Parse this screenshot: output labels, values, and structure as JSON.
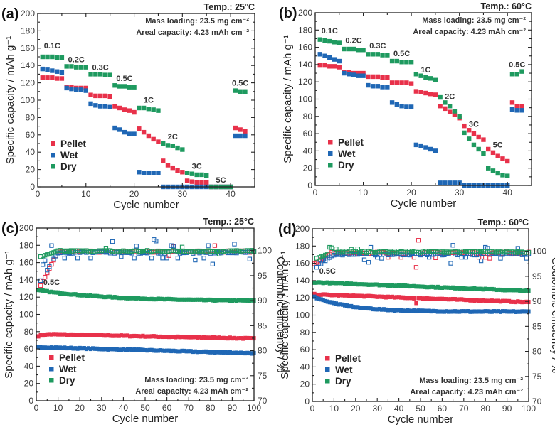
{
  "figure": {
    "colors": {
      "Pellet": "#e8314a",
      "Wet": "#1f67b5",
      "Dry": "#1e9a5f"
    }
  },
  "chart_data": [
    {
      "id": "a",
      "panel_label": "(a)",
      "type": "scatter",
      "title": "Temp.: 25°C",
      "annotations": [
        "Mass loading: 23.5 mg cm⁻²",
        "Areal capacity: 4.23 mAh cm⁻²"
      ],
      "xlabel": "Cycle number",
      "ylabel": "Specific capacity / mAh g⁻¹",
      "xlim": [
        0,
        45
      ],
      "ylim": [
        0,
        200
      ],
      "xticks": [
        0,
        10,
        20,
        30,
        40
      ],
      "yticks": [
        0,
        20,
        40,
        60,
        80,
        100,
        120,
        140,
        160,
        180,
        200
      ],
      "legend": [
        "Pellet",
        "Wet",
        "Dry"
      ],
      "legend_position": "bottom-left",
      "rate_labels": [
        {
          "text": "0.1C",
          "x": 3,
          "y": 160
        },
        {
          "text": "0.2C",
          "x": 8,
          "y": 144
        },
        {
          "text": "0.3C",
          "x": 13,
          "y": 135
        },
        {
          "text": "0.5C",
          "x": 18,
          "y": 122
        },
        {
          "text": "1C",
          "x": 23,
          "y": 97
        },
        {
          "text": "2C",
          "x": 28,
          "y": 55
        },
        {
          "text": "3C",
          "x": 33,
          "y": 21
        },
        {
          "text": "5C",
          "x": 38,
          "y": 5
        },
        {
          "text": "0.5C",
          "x": 42,
          "y": 117
        }
      ],
      "x": [
        1,
        2,
        3,
        4,
        5,
        6,
        7,
        8,
        9,
        10,
        11,
        12,
        13,
        14,
        15,
        16,
        17,
        18,
        19,
        20,
        21,
        22,
        23,
        24,
        25,
        26,
        27,
        28,
        29,
        30,
        31,
        32,
        33,
        34,
        35,
        36,
        37,
        38,
        39,
        40,
        41,
        42,
        43
      ],
      "series": [
        {
          "name": "Pellet",
          "values": [
            126,
            126,
            126,
            125,
            125,
            115,
            115,
            114,
            114,
            114,
            106,
            105,
            105,
            105,
            104,
            93,
            91,
            89,
            88,
            86,
            67,
            63,
            59,
            55,
            52,
            30,
            25,
            22,
            19,
            17,
            7,
            6,
            5,
            5,
            5,
            0,
            0,
            0,
            0,
            0,
            68,
            66,
            64
          ]
        },
        {
          "name": "Wet",
          "values": [
            136,
            135,
            134,
            133,
            132,
            114,
            113,
            112,
            112,
            111,
            96,
            94,
            93,
            93,
            92,
            68,
            66,
            63,
            61,
            61,
            17,
            16,
            16,
            16,
            16,
            0,
            0,
            0,
            0,
            0,
            0,
            0,
            0,
            0,
            0,
            0,
            0,
            0,
            0,
            0,
            59,
            59,
            59
          ]
        },
        {
          "name": "Dry",
          "values": [
            150,
            150,
            150,
            149,
            149,
            139,
            139,
            138,
            138,
            138,
            130,
            130,
            130,
            129,
            129,
            117,
            116,
            116,
            115,
            115,
            91,
            91,
            90,
            89,
            88,
            50,
            48,
            47,
            45,
            43,
            16,
            15,
            14,
            14,
            13,
            0,
            0,
            0,
            0,
            0,
            111,
            110,
            110
          ]
        }
      ]
    },
    {
      "id": "b",
      "panel_label": "(b)",
      "type": "scatter",
      "title": "Temp.: 60°C",
      "annotations": [
        "Mass loading: 23.5 mg cm⁻²",
        "Areal capacity: 4.23 mAh cm⁻²"
      ],
      "xlabel": "Cycle number",
      "ylabel": "Specific capacity / mAh g⁻¹",
      "xlim": [
        0,
        45
      ],
      "ylim": [
        0,
        200
      ],
      "xticks": [
        0,
        10,
        20,
        30,
        40
      ],
      "yticks": [
        0,
        20,
        40,
        60,
        80,
        100,
        120,
        140,
        160,
        180,
        200
      ],
      "legend": [
        "Pellet",
        "Wet",
        "Dry"
      ],
      "legend_position": "bottom-left",
      "rate_labels": [
        {
          "text": "0.1C",
          "x": 3,
          "y": 176
        },
        {
          "text": "0.2C",
          "x": 8,
          "y": 165
        },
        {
          "text": "0.3C",
          "x": 13,
          "y": 159
        },
        {
          "text": "0.5C",
          "x": 18,
          "y": 150
        },
        {
          "text": "1C",
          "x": 23,
          "y": 131
        },
        {
          "text": "2C",
          "x": 28,
          "y": 100
        },
        {
          "text": "3C",
          "x": 33,
          "y": 68
        },
        {
          "text": "5C",
          "x": 38,
          "y": 44
        },
        {
          "text": "0.5C",
          "x": 42,
          "y": 137
        }
      ],
      "x": [
        1,
        2,
        3,
        4,
        5,
        6,
        7,
        8,
        9,
        10,
        11,
        12,
        13,
        14,
        15,
        16,
        17,
        18,
        19,
        20,
        21,
        22,
        23,
        24,
        25,
        26,
        27,
        28,
        29,
        30,
        31,
        32,
        33,
        34,
        35,
        36,
        37,
        38,
        39,
        40,
        41,
        42,
        43
      ],
      "series": [
        {
          "name": "Pellet",
          "values": [
            139,
            139,
            138,
            138,
            137,
            131,
            131,
            130,
            130,
            130,
            126,
            126,
            126,
            125,
            125,
            119,
            119,
            119,
            119,
            118,
            109,
            108,
            107,
            106,
            105,
            92,
            89,
            85,
            82,
            78,
            69,
            64,
            60,
            56,
            53,
            42,
            38,
            34,
            31,
            28,
            96,
            92,
            92
          ]
        },
        {
          "name": "Wet",
          "values": [
            152,
            150,
            148,
            146,
            144,
            130,
            129,
            128,
            127,
            127,
            116,
            115,
            115,
            114,
            114,
            96,
            94,
            92,
            91,
            91,
            47,
            46,
            44,
            42,
            40,
            3,
            3,
            3,
            3,
            3,
            0,
            0,
            0,
            0,
            0,
            0,
            0,
            0,
            0,
            0,
            88,
            87,
            87
          ]
        },
        {
          "name": "Dry",
          "values": [
            169,
            168,
            167,
            166,
            165,
            158,
            158,
            158,
            157,
            157,
            152,
            152,
            152,
            151,
            151,
            144,
            144,
            143,
            143,
            143,
            129,
            127,
            125,
            124,
            122,
            102,
            96,
            92,
            86,
            80,
            61,
            54,
            47,
            42,
            37,
            20,
            17,
            14,
            12,
            11,
            129,
            129,
            132
          ]
        }
      ]
    },
    {
      "id": "c",
      "panel_label": "(c)",
      "type": "scatter",
      "title": "Temp.: 25°C",
      "annotations": [
        "Mass loading: 23.5 mg cm⁻²",
        "Areal capacity: 4.23 mAh cm⁻²"
      ],
      "rate_labels": [
        {
          "text": "0.5C",
          "x": 7,
          "y": 134
        }
      ],
      "xlabel": "Cycle number",
      "ylabel": "Specific capacity / mAh g⁻¹",
      "y2label": "Coulombic efficiency / %",
      "xlim": [
        0,
        100
      ],
      "ylim": [
        0,
        200
      ],
      "y2lim": [
        70,
        104.5
      ],
      "xticks": [
        0,
        10,
        20,
        30,
        40,
        50,
        60,
        70,
        80,
        90,
        100
      ],
      "yticks": [
        0,
        20,
        40,
        60,
        80,
        100,
        120,
        140,
        160,
        180,
        200
      ],
      "y2ticks": [
        70,
        75,
        80,
        85,
        90,
        95,
        100
      ],
      "legend": [
        "Pellet",
        "Wet",
        "Dry"
      ],
      "legend_position": "bottom-left",
      "capacity_series": [
        {
          "name": "Pellet",
          "start": 75,
          "peak_cycle": 6,
          "peak": 77,
          "end": 72
        },
        {
          "name": "Wet",
          "start": 62,
          "peak_cycle": 1,
          "peak": 62,
          "end": 55
        },
        {
          "name": "Dry",
          "start": 128,
          "peak_cycle": 1,
          "peak": 128,
          "end": 116
        }
      ],
      "ce_series": [
        {
          "name": "Pellet",
          "baseline": 99.8,
          "first": {
            "x": 2,
            "y": 93
          },
          "outliers": [
            [
              61,
              99.0
            ],
            [
              82,
              101.0
            ],
            [
              63,
              100.8
            ]
          ]
        },
        {
          "name": "Wet",
          "baseline": 99.6,
          "first": {
            "x": 2,
            "y": 94
          },
          "outliers": [
            [
              3,
              97.2
            ],
            [
              4,
              98.0
            ],
            [
              7,
              101.0
            ],
            [
              8,
              98.3
            ],
            [
              13,
              98.5
            ],
            [
              19,
              98.5
            ],
            [
              25,
              98.5
            ],
            [
              35,
              101.8
            ],
            [
              39,
              98.8
            ],
            [
              45,
              98.5
            ],
            [
              46,
              100.9
            ],
            [
              53,
              98.5
            ],
            [
              54,
              102.2
            ],
            [
              55,
              101.9
            ],
            [
              58,
              98.5
            ],
            [
              60,
              98.5
            ],
            [
              62,
              101.0
            ],
            [
              63,
              100.9
            ],
            [
              65,
              98.5
            ],
            [
              73,
              98.1
            ],
            [
              77,
              98.5
            ],
            [
              79,
              101.0
            ],
            [
              81,
              97.3
            ],
            [
              91,
              101.3
            ],
            [
              98,
              98.3
            ]
          ]
        },
        {
          "name": "Dry",
          "baseline": 99.9,
          "first": {
            "x": 2,
            "y": 98.8
          },
          "outliers": [
            [
              32,
              100.5
            ],
            [
              67,
              100.7
            ],
            [
              84,
              99.3
            ]
          ]
        }
      ]
    },
    {
      "id": "d",
      "panel_label": "(d)",
      "type": "scatter",
      "title": "Temp.: 60°C",
      "annotations": [
        "Mass loading: 23.5 mg cm⁻²",
        "Areal capacity: 4.23 mAh cm⁻²"
      ],
      "rate_labels": [
        {
          "text": "0.5C",
          "x": 7,
          "y": 148
        }
      ],
      "xlabel": "Cycle number",
      "ylabel": "Specific capacity / mAh g⁻¹",
      "y2label": "Coulombic efficiency / %",
      "xlim": [
        0,
        100
      ],
      "ylim": [
        0,
        200
      ],
      "y2lim": [
        70,
        104.5
      ],
      "xticks": [
        0,
        10,
        20,
        30,
        40,
        50,
        60,
        70,
        80,
        90,
        100
      ],
      "yticks": [
        0,
        20,
        40,
        60,
        80,
        100,
        120,
        140,
        160,
        180,
        200
      ],
      "y2ticks": [
        70,
        75,
        80,
        85,
        90,
        95,
        100
      ],
      "legend": [
        "Pellet",
        "Wet",
        "Dry"
      ],
      "legend_position": "bottom-left",
      "capacity_series": [
        {
          "name": "Pellet",
          "start": 124,
          "peak_cycle": 1,
          "peak": 124,
          "end": 115,
          "dip": [
            48,
            114
          ]
        },
        {
          "name": "Wet",
          "start": 121,
          "peak_cycle": 1,
          "peak": 121,
          "end": 104
        },
        {
          "name": "Dry",
          "start": 138,
          "peak_cycle": 1,
          "peak": 138,
          "end": 128
        }
      ],
      "ce_series": [
        {
          "name": "Pellet",
          "baseline": 99.7,
          "first": {
            "x": 1,
            "y": 97.5
          },
          "outliers": [
            [
              35,
              98.8
            ],
            [
              41,
              98.8
            ],
            [
              47,
              98.8
            ],
            [
              48,
              96.8
            ],
            [
              49,
              102.2
            ],
            [
              57,
              98.7
            ],
            [
              77,
              98.8
            ],
            [
              80,
              98.8
            ],
            [
              82,
              98.6
            ]
          ]
        },
        {
          "name": "Wet",
          "baseline": 99.4,
          "first": {
            "x": 2,
            "y": 96.8
          },
          "outliers": [
            [
              3,
              97.6
            ],
            [
              5,
              98.2
            ],
            [
              24,
              98.3
            ],
            [
              26,
              97.8
            ],
            [
              27,
              100.8
            ],
            [
              30,
              98.8
            ],
            [
              32,
              98.6
            ],
            [
              54,
              98.8
            ],
            [
              64,
              97.6
            ],
            [
              65,
              101.2
            ],
            [
              69,
              98.8
            ],
            [
              71,
              98.8
            ],
            [
              78,
              98.1
            ],
            [
              80,
              100.8
            ],
            [
              81,
              100.6
            ],
            [
              87,
              98.6
            ],
            [
              95,
              100.6
            ],
            [
              99,
              98.6
            ]
          ]
        },
        {
          "name": "Dry",
          "baseline": 99.9,
          "first": {
            "x": 2,
            "y": 98.6
          },
          "outliers": [
            [
              8,
              100.8
            ],
            [
              9,
              100.7
            ],
            [
              11,
              100.5
            ],
            [
              18,
              100.4
            ],
            [
              21,
              100.5
            ]
          ]
        }
      ]
    }
  ]
}
